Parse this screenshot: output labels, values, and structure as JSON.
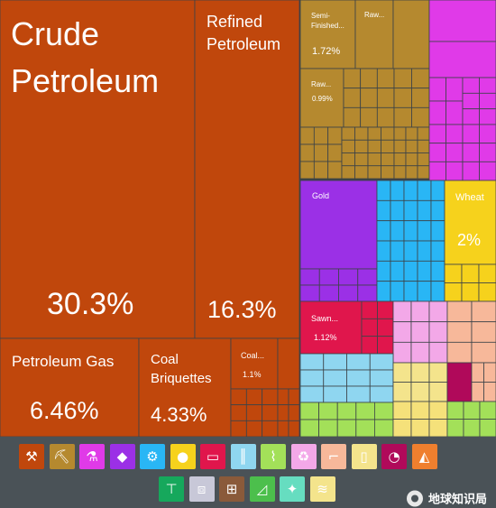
{
  "chart_data": {
    "type": "treemap",
    "labeled_cells": [
      {
        "label": "Crude Petroleum",
        "value": "30.3%",
        "color": "#c0470c"
      },
      {
        "label": "Refined Petroleum",
        "value": "16.3%",
        "color": "#c0470c"
      },
      {
        "label": "Petroleum Gas",
        "value": "6.46%",
        "color": "#c0470c"
      },
      {
        "label": "Coal Briquettes",
        "value": "4.33%",
        "color": "#c0470c"
      },
      {
        "label": "Coal...",
        "value": "1.1%",
        "color": "#c0470c"
      },
      {
        "label": "Semi-Finished...",
        "value": "1.72%",
        "color": "#b5892f"
      },
      {
        "label": "Raw...",
        "value": "",
        "color": "#b5892f"
      },
      {
        "label": "Raw...",
        "value": "0.99%",
        "color": "#b5892f"
      },
      {
        "label": "Gold",
        "value": "",
        "color": "#9b30e6"
      },
      {
        "label": "Wheat",
        "value": "2%",
        "color": "#f6d21c"
      },
      {
        "label": "Sawn...",
        "value": "1.12%",
        "color": "#e0164c"
      }
    ],
    "sector_colors": {
      "mineral_products": "#c0470c",
      "metals": "#b5892f",
      "chemicals": "#e03ae8",
      "precious_metals": "#9b30e6",
      "machines": "#29b6f5",
      "vegetable_products": "#f6d21c",
      "wood_products": "#e0164c",
      "transportation": "#8fd6f0",
      "plastics_rubber": "#f3a8e8",
      "animal_hides": "#f7b89a",
      "foodstuffs": "#f4e48c",
      "instruments": "#b0095a",
      "textiles": "#a3e059",
      "miscellaneous": "#f5e17a",
      "footwear": "#ffc58f"
    }
  },
  "legend": {
    "icons": [
      {
        "name": "mineral-products-icon",
        "color": "#c0470c"
      },
      {
        "name": "metals-icon",
        "color": "#b5892f"
      },
      {
        "name": "chemical-flask-icon",
        "color": "#e03ae8"
      },
      {
        "name": "diamond-icon",
        "color": "#9b30e6"
      },
      {
        "name": "gear-icon",
        "color": "#29b6f5"
      },
      {
        "name": "fruit-icon",
        "color": "#f6d21c"
      },
      {
        "name": "wood-log-icon",
        "color": "#e0164c"
      },
      {
        "name": "road-icon",
        "color": "#8fd6f0"
      },
      {
        "name": "grain-icon",
        "color": "#a3e059"
      },
      {
        "name": "recycle-icon",
        "color": "#f3a8e8"
      },
      {
        "name": "animal-icon",
        "color": "#f7b89a"
      },
      {
        "name": "bottle-icon",
        "color": "#f4e48c"
      },
      {
        "name": "gauge-icon",
        "color": "#b0095a"
      },
      {
        "name": "stone-icon",
        "color": "#ef7f2e"
      },
      {
        "name": "shirt-icon",
        "color": "#16a85c"
      },
      {
        "name": "box-icon",
        "color": "#c8c8d8"
      },
      {
        "name": "easel-icon",
        "color": "#8a5a3a"
      },
      {
        "name": "shoe-icon",
        "color": "#4cbf4c"
      },
      {
        "name": "hide-icon",
        "color": "#66ddc0"
      },
      {
        "name": "fabric-icon",
        "color": "#f4e48c"
      }
    ]
  },
  "watermark": {
    "text": "地球知识局"
  }
}
